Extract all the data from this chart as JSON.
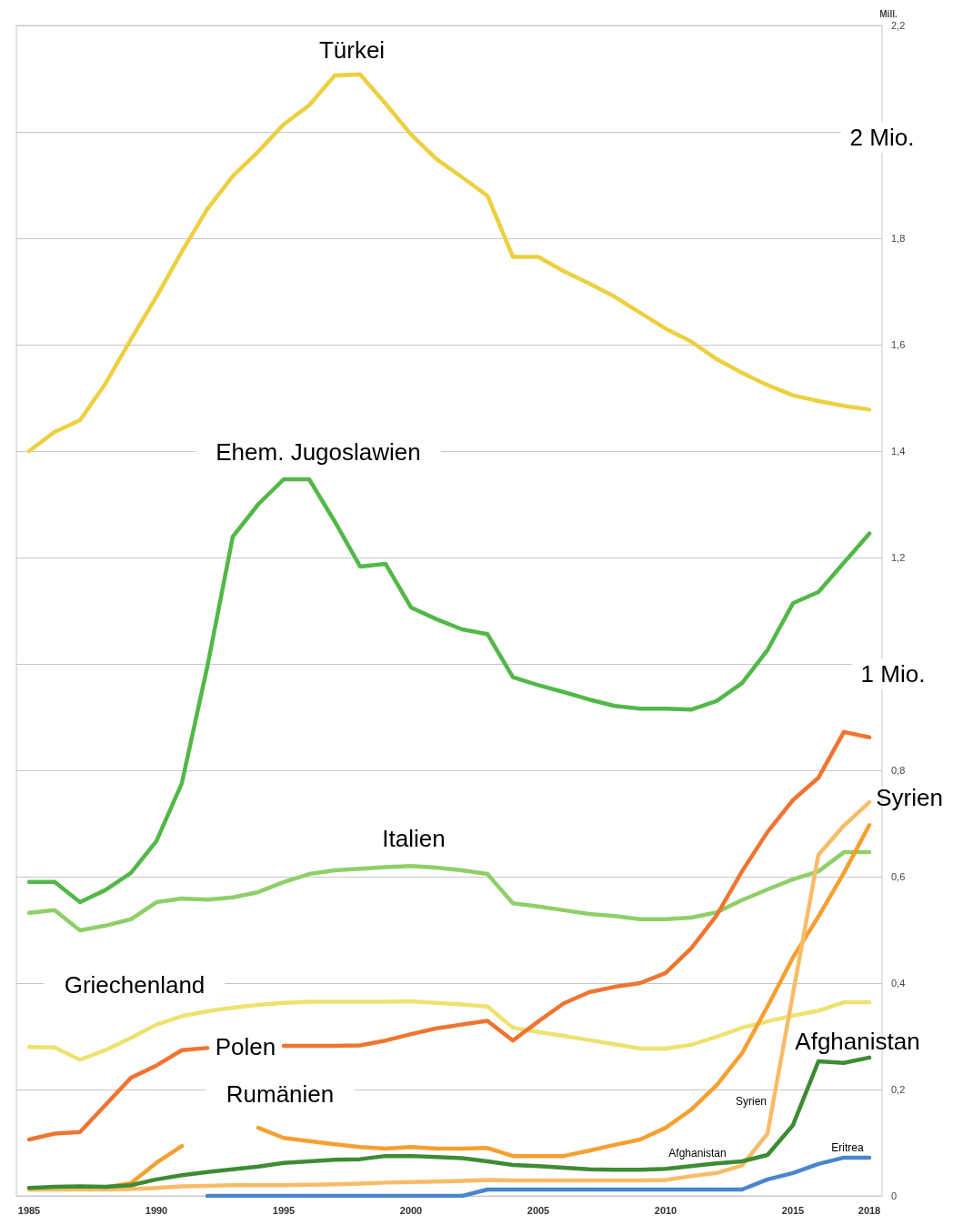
{
  "chart_data": {
    "type": "line",
    "ylabel": "Mill.",
    "xlim": [
      1984.5,
      2018.5
    ],
    "xticks": [
      1985,
      1990,
      1995,
      2000,
      2005,
      2010,
      2015,
      2018
    ],
    "ylim": [
      0,
      2.2
    ],
    "yticks": [
      0,
      {
        "value": 0.2,
        "label": "0,2"
      },
      {
        "value": 0.4,
        "label": "0,4"
      },
      {
        "value": 0.6,
        "label": "0,6"
      },
      {
        "value": 0.8,
        "label": "0,8"
      },
      {
        "value": 1,
        "label": null
      },
      {
        "value": 1.2,
        "label": "1,2"
      },
      {
        "value": 1.4,
        "label": "1,4"
      },
      {
        "value": 1.6,
        "label": "1,6"
      },
      {
        "value": 1.8,
        "label": "1,8"
      },
      {
        "value": 2,
        "label": null
      },
      {
        "value": 2.2,
        "label": "2,2"
      }
    ],
    "grid": "y",
    "legend": false,
    "marker": "none",
    "line_style": "solid",
    "x": [
      1985,
      1986,
      1987,
      1988,
      1989,
      1990,
      1991,
      1992,
      1993,
      1994,
      1995,
      1996,
      1997,
      1998,
      1999,
      2000,
      2001,
      2002,
      2003,
      2004,
      2005,
      2006,
      2007,
      2008,
      2009,
      2010,
      2011,
      2012,
      2013,
      2014,
      2015,
      2016,
      2017,
      2018
    ],
    "series": [
      {
        "name": "Türkei",
        "color": "#ecd040",
        "values": [
          1.4,
          1.436,
          1.458,
          1.527,
          1.61,
          1.69,
          1.775,
          1.855,
          1.917,
          1.963,
          2.014,
          2.05,
          2.106,
          2.108,
          2.053,
          1.995,
          1.949,
          1.915,
          1.88,
          1.765,
          1.765,
          1.738,
          1.715,
          1.69,
          1.66,
          1.63,
          1.606,
          1.573,
          1.547,
          1.524,
          1.505,
          1.494,
          1.485,
          1.478
        ]
      },
      {
        "name": "Ehem. Jugoslawien",
        "color": "#52b848",
        "values": [
          0.59,
          0.59,
          0.552,
          0.575,
          0.607,
          0.667,
          0.776,
          0.995,
          1.239,
          1.3,
          1.347,
          1.347,
          1.268,
          1.183,
          1.188,
          1.106,
          1.084,
          1.065,
          1.056,
          0.975,
          0.96,
          0.947,
          0.933,
          0.921,
          0.916,
          0.916,
          0.914,
          0.93,
          0.964,
          1.026,
          1.114,
          1.135,
          1.19,
          1.245
        ]
      },
      {
        "name": "Italien",
        "color": "#8fcf68",
        "values": [
          0.532,
          0.537,
          0.499,
          0.508,
          0.52,
          0.552,
          0.559,
          0.557,
          0.561,
          0.571,
          0.59,
          0.605,
          0.612,
          0.615,
          0.618,
          0.62,
          0.617,
          0.612,
          0.605,
          0.55,
          0.544,
          0.537,
          0.53,
          0.526,
          0.52,
          0.52,
          0.523,
          0.533,
          0.556,
          0.576,
          0.595,
          0.61,
          0.646,
          0.646
        ]
      },
      {
        "name": "Griechenland",
        "color": "#eee270",
        "values": [
          0.28,
          0.279,
          0.256,
          0.274,
          0.297,
          0.322,
          0.338,
          0.347,
          0.354,
          0.359,
          0.363,
          0.365,
          0.365,
          0.365,
          0.365,
          0.366,
          0.363,
          0.36,
          0.356,
          0.316,
          0.308,
          0.301,
          0.293,
          0.285,
          0.277,
          0.277,
          0.284,
          0.299,
          0.316,
          0.328,
          0.339,
          0.348,
          0.364,
          0.364
        ]
      },
      {
        "name": "Polen",
        "color": "#ef7530",
        "values": [
          0.106,
          0.117,
          0.12,
          0.171,
          0.222,
          0.245,
          0.274,
          0.278,
          null,
          null,
          0.282,
          0.282,
          0.282,
          0.283,
          0.292,
          0.304,
          0.315,
          0.322,
          0.329,
          0.292,
          0.328,
          0.362,
          0.383,
          0.393,
          0.4,
          0.419,
          0.465,
          0.527,
          0.61,
          0.684,
          0.744,
          0.786,
          0.872,
          0.862
        ]
      },
      {
        "name": "Rumänien",
        "color": "#f5a030",
        "values": [
          0.014,
          0.015,
          0.016,
          0.016,
          0.024,
          0.062,
          0.094,
          null,
          null,
          0.128,
          0.109,
          0.103,
          0.097,
          0.092,
          0.089,
          0.092,
          0.089,
          0.089,
          0.09,
          0.075,
          0.075,
          0.075,
          0.085,
          0.096,
          0.106,
          0.128,
          0.162,
          0.208,
          0.268,
          0.356,
          0.448,
          0.525,
          0.607,
          0.697
        ]
      },
      {
        "name": "Syrien",
        "color": "#f8bc68",
        "values": [
          0.012,
          0.012,
          0.012,
          0.012,
          0.013,
          0.015,
          0.018,
          0.019,
          0.02,
          0.02,
          0.02,
          0.021,
          0.022,
          0.023,
          0.025,
          0.026,
          0.027,
          0.028,
          0.03,
          0.029,
          0.029,
          0.029,
          0.029,
          0.029,
          0.029,
          0.03,
          0.037,
          0.043,
          0.057,
          0.117,
          0.38,
          0.641,
          0.696,
          0.74
        ]
      },
      {
        "name": "Afghanistan",
        "color": "#3d8c34",
        "values": [
          0.015,
          0.017,
          0.018,
          0.017,
          0.02,
          0.031,
          0.039,
          0.045,
          0.05,
          0.055,
          0.062,
          0.065,
          0.068,
          0.069,
          0.075,
          0.075,
          0.073,
          0.071,
          0.065,
          0.058,
          0.056,
          0.053,
          0.05,
          0.049,
          0.049,
          0.051,
          0.056,
          0.061,
          0.065,
          0.077,
          0.133,
          0.253,
          0.25,
          0.26
        ]
      },
      {
        "name": "Eritrea",
        "color": "#4a86cc",
        "values": [
          null,
          null,
          null,
          null,
          null,
          null,
          null,
          0,
          0,
          0,
          0,
          0,
          0,
          0,
          0,
          0,
          0,
          0,
          0.012,
          0.012,
          0.012,
          0.012,
          0.012,
          0.012,
          0.012,
          0.012,
          0.012,
          0.012,
          0.012,
          0.031,
          0.043,
          0.06,
          0.072,
          0.072
        ]
      }
    ],
    "annotations": [
      "2 Mio.",
      "1 Mio."
    ]
  }
}
